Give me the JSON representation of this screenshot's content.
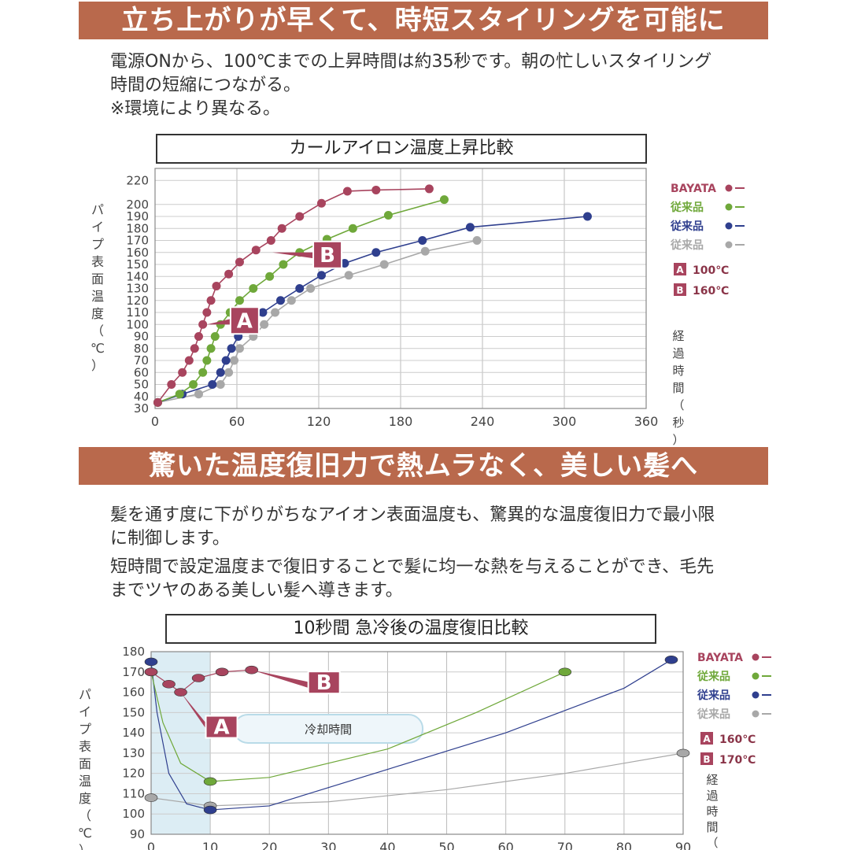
{
  "sections": {
    "s1": {
      "banner": "立ち上がりが早くて、時短スタイリングを可能に",
      "text_line1": "電源ONから、100℃までの上昇時間は約35秒です。朝の忙しいスタイリング",
      "text_line2": "時間の短縮につながる。",
      "text_line3": "※環境により異なる。"
    },
    "s2": {
      "banner": "驚いた温度復旧力で熱ムラなく、美しい髪へ",
      "text_line1": "髪を通す度に下がりがちなアイオン表面温度も、驚異的な温度復旧力で最小限",
      "text_line2": "に制御します。",
      "text_line3": "短時間で設定温度まで復旧することで髪に均一な熱を与えることができ、毛先",
      "text_line4": "までツヤのある美しい髪へ導きます。"
    }
  },
  "chart_data": [
    {
      "type": "line",
      "title": "カールアイロン温度上昇比較",
      "ylabel": "パイプ表面温度（℃）",
      "xlabel": "経過時間（秒）",
      "xlim": [
        0,
        360
      ],
      "ylim": [
        30,
        230
      ],
      "x_ticks": [
        "0",
        "60",
        "120",
        "180",
        "240",
        "300",
        "360"
      ],
      "y_ticks": [
        "30",
        "40",
        "50",
        "60",
        "70",
        "80",
        "90",
        "100",
        "110",
        "120",
        "130",
        "140",
        "150",
        "160",
        "170",
        "180",
        "190",
        "200",
        "220"
      ],
      "grid": true,
      "legend_position": "right",
      "series": [
        {
          "name": "BAYATA",
          "color": "#a8445e",
          "points": [
            [
              2,
              35
            ],
            [
              12,
              50
            ],
            [
              20,
              60
            ],
            [
              25,
              70
            ],
            [
              29,
              80
            ],
            [
              32,
              90
            ],
            [
              35,
              100
            ],
            [
              38,
              110
            ],
            [
              41,
              120
            ],
            [
              45,
              132
            ],
            [
              54,
              142
            ],
            [
              62,
              152
            ],
            [
              74,
              162
            ],
            [
              85,
              170
            ],
            [
              93,
              180
            ],
            [
              106,
              190
            ],
            [
              122,
              201
            ],
            [
              141,
              211
            ],
            [
              162,
              212
            ],
            [
              201,
              213
            ]
          ]
        },
        {
          "name": "従来品",
          "color": "#6fa83a",
          "points": [
            [
              2,
              35
            ],
            [
              18,
              42
            ],
            [
              28,
              50
            ],
            [
              35,
              60
            ],
            [
              38,
              70
            ],
            [
              41,
              80
            ],
            [
              44,
              90
            ],
            [
              48,
              100
            ],
            [
              55,
              110
            ],
            [
              62,
              120
            ],
            [
              72,
              130
            ],
            [
              84,
              140
            ],
            [
              94,
              150
            ],
            [
              106,
              160
            ],
            [
              126,
              171
            ],
            [
              145,
              180
            ],
            [
              171,
              191
            ],
            [
              212,
              204
            ]
          ]
        },
        {
          "name": "従来品",
          "color": "#2f3f8e",
          "points": [
            [
              2,
              35
            ],
            [
              20,
              42
            ],
            [
              42,
              50
            ],
            [
              48,
              60
            ],
            [
              52,
              70
            ],
            [
              56,
              80
            ],
            [
              61,
              90
            ],
            [
              69,
              100
            ],
            [
              79,
              110
            ],
            [
              92,
              120
            ],
            [
              106,
              130
            ],
            [
              122,
              141
            ],
            [
              139,
              151
            ],
            [
              162,
              160
            ],
            [
              196,
              170
            ],
            [
              231,
              181
            ],
            [
              317,
              190
            ]
          ]
        },
        {
          "name": "従来品",
          "color": "#a8a8a8",
          "points": [
            [
              2,
              35
            ],
            [
              32,
              42
            ],
            [
              48,
              50
            ],
            [
              54,
              60
            ],
            [
              58,
              70
            ],
            [
              62,
              80
            ],
            [
              72,
              90
            ],
            [
              80,
              100
            ],
            [
              88,
              110
            ],
            [
              100,
              120
            ],
            [
              114,
              130
            ],
            [
              142,
              141
            ],
            [
              168,
              150
            ],
            [
              198,
              161
            ],
            [
              236,
              170
            ]
          ]
        }
      ],
      "annotations": [
        {
          "label": "A",
          "text": "100℃",
          "x": 38,
          "y": 100
        },
        {
          "label": "B",
          "text": "160℃",
          "x": 86,
          "y": 160
        }
      ]
    },
    {
      "type": "line",
      "title": "10秒間 急冷後の温度復旧比較",
      "ylabel": "パイプ表面温度（℃）",
      "xlabel": "経過時間（秒）",
      "xlim": [
        0,
        90
      ],
      "ylim": [
        90,
        180
      ],
      "x_ticks": [
        "0",
        "10",
        "20",
        "30",
        "40",
        "50",
        "60",
        "70",
        "80",
        "90"
      ],
      "y_ticks": [
        "90",
        "100",
        "110",
        "120",
        "130",
        "140",
        "150",
        "160",
        "170",
        "180"
      ],
      "grid": true,
      "shaded_region": {
        "label": "冷却時間",
        "x": [
          0,
          10
        ]
      },
      "legend_position": "right",
      "series": [
        {
          "name": "BAYATA",
          "color": "#a8445e",
          "points": [
            [
              0,
              170
            ],
            [
              3,
              164
            ],
            [
              5,
              160
            ],
            [
              8,
              167
            ],
            [
              12,
              170
            ],
            [
              17,
              171
            ]
          ]
        },
        {
          "name": "従来品",
          "color": "#6fa83a",
          "points": [
            [
              0,
              170
            ],
            [
              2,
              145
            ],
            [
              5,
              125
            ],
            [
              10,
              116
            ],
            [
              20,
              118
            ],
            [
              40,
              132
            ],
            [
              55,
              150
            ],
            [
              70,
              170
            ]
          ]
        },
        {
          "name": "従来品",
          "color": "#2f3f8e",
          "points": [
            [
              0,
              175
            ],
            [
              1,
              150
            ],
            [
              3,
              120
            ],
            [
              6,
              105
            ],
            [
              10,
              102
            ],
            [
              20,
              104
            ],
            [
              40,
              122
            ],
            [
              60,
              140
            ],
            [
              80,
              162
            ],
            [
              88,
              176
            ]
          ]
        },
        {
          "name": "従来品",
          "color": "#a8a8a8",
          "points": [
            [
              0,
              108
            ],
            [
              10,
              104
            ],
            [
              30,
              106
            ],
            [
              50,
              112
            ],
            [
              70,
              120
            ],
            [
              90,
              130
            ]
          ]
        }
      ],
      "annotations": [
        {
          "label": "A",
          "text": "160℃",
          "x": 5,
          "y": 160
        },
        {
          "label": "B",
          "text": "170℃",
          "x": 17,
          "y": 171
        }
      ]
    }
  ]
}
